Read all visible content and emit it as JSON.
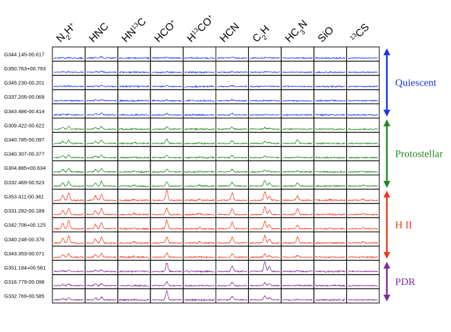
{
  "chart_data": {
    "type": "spectral-line-grid",
    "molecules": [
      {
        "id": "N2H+",
        "parts": [
          {
            "t": "N",
            "s": "n"
          },
          {
            "t": "2",
            "s": "sub"
          },
          {
            "t": "H",
            "s": "n"
          },
          {
            "t": "+",
            "s": "sup"
          }
        ]
      },
      {
        "id": "HNC",
        "parts": [
          {
            "t": "HNC",
            "s": "n"
          }
        ]
      },
      {
        "id": "HN13C",
        "parts": [
          {
            "t": "HN",
            "s": "n"
          },
          {
            "t": "13",
            "s": "sup"
          },
          {
            "t": "C",
            "s": "n"
          }
        ]
      },
      {
        "id": "HCO+",
        "parts": [
          {
            "t": "HCO",
            "s": "n"
          },
          {
            "t": "+",
            "s": "sup"
          }
        ]
      },
      {
        "id": "H13CO+",
        "parts": [
          {
            "t": "H",
            "s": "n"
          },
          {
            "t": "13",
            "s": "sup"
          },
          {
            "t": "CO",
            "s": "n"
          },
          {
            "t": "+",
            "s": "sup"
          }
        ]
      },
      {
        "id": "HCN",
        "parts": [
          {
            "t": "HCN",
            "s": "n"
          }
        ]
      },
      {
        "id": "C2H",
        "parts": [
          {
            "t": "C",
            "s": "n"
          },
          {
            "t": "2",
            "s": "sub"
          },
          {
            "t": "H",
            "s": "n"
          }
        ]
      },
      {
        "id": "HC3N",
        "parts": [
          {
            "t": "HC",
            "s": "n"
          },
          {
            "t": "3",
            "s": "sub"
          },
          {
            "t": "N",
            "s": "n"
          }
        ]
      },
      {
        "id": "SiO",
        "parts": [
          {
            "t": "SiO",
            "s": "n"
          }
        ]
      },
      {
        "id": "13CS",
        "parts": [
          {
            "t": "13",
            "s": "sup"
          },
          {
            "t": "CS",
            "s": "n"
          }
        ]
      }
    ],
    "categories": [
      {
        "name": "Quiescent",
        "color": "#1a35f0",
        "sources": [
          "G344.145-00.617",
          "G350.763+00.793",
          "G345.230-00.201",
          "G337.205-00.069",
          "G343.486-00.414"
        ]
      },
      {
        "name": "Protostellar",
        "color": "#1f8a1f",
        "sources": [
          "G309.422-00.622",
          "G340.785-00.097",
          "G340.307-00.377",
          "G304.885+00.634",
          "G332.469-00.523"
        ]
      },
      {
        "name": "H II",
        "color": "#f03a1e",
        "sources": [
          "G353.411-00.361",
          "G331.282-00.189",
          "G342.706+00.125",
          "G340.248-00.376",
          "G343.353-00.071"
        ]
      },
      {
        "name": "PDR",
        "color": "#7f2a9a",
        "sources": [
          "G351.184+00.581",
          "G316.779-00.098",
          "G332.769-00.585"
        ]
      }
    ],
    "peak_strength": [
      [
        0.05,
        0.12,
        0.0,
        0.08,
        0.0,
        0.1,
        0.04,
        0.0,
        0.0,
        0.0
      ],
      [
        0.05,
        0.1,
        0.0,
        0.06,
        0.0,
        0.08,
        0.04,
        0.0,
        0.0,
        0.0
      ],
      [
        0.06,
        0.1,
        0.0,
        0.08,
        0.0,
        0.08,
        0.04,
        0.0,
        0.0,
        0.0
      ],
      [
        0.05,
        0.1,
        0.0,
        0.06,
        0.0,
        0.08,
        0.04,
        0.0,
        0.0,
        0.0
      ],
      [
        0.08,
        0.2,
        0.0,
        0.12,
        0.0,
        0.15,
        0.06,
        0.0,
        0.0,
        0.0
      ],
      [
        0.25,
        0.25,
        0.06,
        0.2,
        0.04,
        0.2,
        0.15,
        0.05,
        0.0,
        0.0
      ],
      [
        0.3,
        0.3,
        0.08,
        0.4,
        0.05,
        0.25,
        0.2,
        0.35,
        0.0,
        0.0
      ],
      [
        0.25,
        0.25,
        0.06,
        0.2,
        0.05,
        0.2,
        0.15,
        0.08,
        0.0,
        0.0
      ],
      [
        0.3,
        0.3,
        0.08,
        0.25,
        0.05,
        0.25,
        0.18,
        0.08,
        0.0,
        0.05
      ],
      [
        0.45,
        0.45,
        0.1,
        0.4,
        0.08,
        0.35,
        0.55,
        0.3,
        0.0,
        0.08
      ],
      [
        0.7,
        0.6,
        0.1,
        0.95,
        0.1,
        0.7,
        0.8,
        0.4,
        0.05,
        0.12
      ],
      [
        0.6,
        0.55,
        0.1,
        0.6,
        0.1,
        0.55,
        0.75,
        0.6,
        0.05,
        0.1
      ],
      [
        0.75,
        0.6,
        0.1,
        0.8,
        0.1,
        0.6,
        0.7,
        0.35,
        0.05,
        0.1
      ],
      [
        0.65,
        0.55,
        0.1,
        0.55,
        0.1,
        0.55,
        0.7,
        0.55,
        0.05,
        0.1
      ],
      [
        0.35,
        0.35,
        0.08,
        0.4,
        0.06,
        0.3,
        0.3,
        0.15,
        0.0,
        0.05
      ],
      [
        0.1,
        0.15,
        0.0,
        0.8,
        0.0,
        0.5,
        0.9,
        0.05,
        0.0,
        0.0
      ],
      [
        0.15,
        0.2,
        0.0,
        0.35,
        0.0,
        0.3,
        0.3,
        0.05,
        0.0,
        0.0
      ],
      [
        0.2,
        0.25,
        0.0,
        0.85,
        0.0,
        0.35,
        0.4,
        0.05,
        0.0,
        0.0
      ]
    ]
  }
}
